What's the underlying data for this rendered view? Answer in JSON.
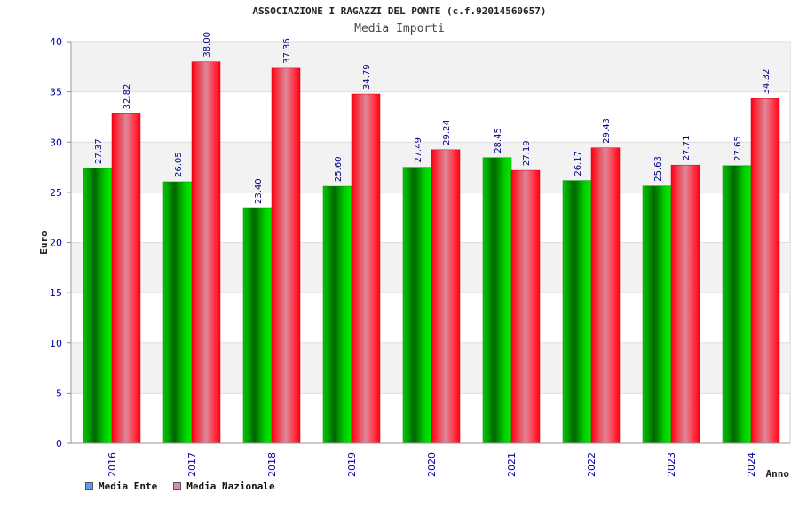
{
  "header": {
    "title": "ASSOCIAZIONE I RAGAZZI DEL PONTE (c.f.92014560657)",
    "subtitle": "Media Importi"
  },
  "colors": {
    "series1": "#00aa00",
    "series2": "#ee1122",
    "legend1": "#6699ee",
    "legend2": "#dd88bb",
    "axis_text": "#0000aa",
    "band": "#f2f2f2"
  },
  "chart_data": {
    "type": "bar",
    "title": "ASSOCIAZIONE I RAGAZZI DEL PONTE (c.f.92014560657)",
    "subtitle": "Media Importi",
    "xlabel": "Anno",
    "ylabel": "Euro",
    "ylim": [
      0,
      40
    ],
    "yticks": [
      0,
      5,
      10,
      15,
      20,
      25,
      30,
      35,
      40
    ],
    "grid": true,
    "legend_position": "bottom-left",
    "categories": [
      "2016",
      "2017",
      "2018",
      "2019",
      "2020",
      "2021",
      "2022",
      "2023",
      "2024"
    ],
    "series": [
      {
        "name": "Media Ente",
        "values": [
          27.37,
          26.05,
          23.4,
          25.6,
          27.49,
          28.45,
          26.17,
          25.63,
          27.65
        ],
        "labels": [
          "27.37",
          "26.05",
          "23.40",
          "25.60",
          "27.49",
          "28.45",
          "26.17",
          "25.63",
          "27.65"
        ]
      },
      {
        "name": "Media Nazionale",
        "values": [
          32.82,
          38.0,
          37.36,
          34.79,
          29.24,
          27.19,
          29.43,
          27.71,
          34.32
        ],
        "labels": [
          "32.82",
          "38.00",
          "37.36",
          "34.79",
          "29.24",
          "27.19",
          "29.43",
          "27.71",
          "34.32"
        ]
      }
    ]
  }
}
